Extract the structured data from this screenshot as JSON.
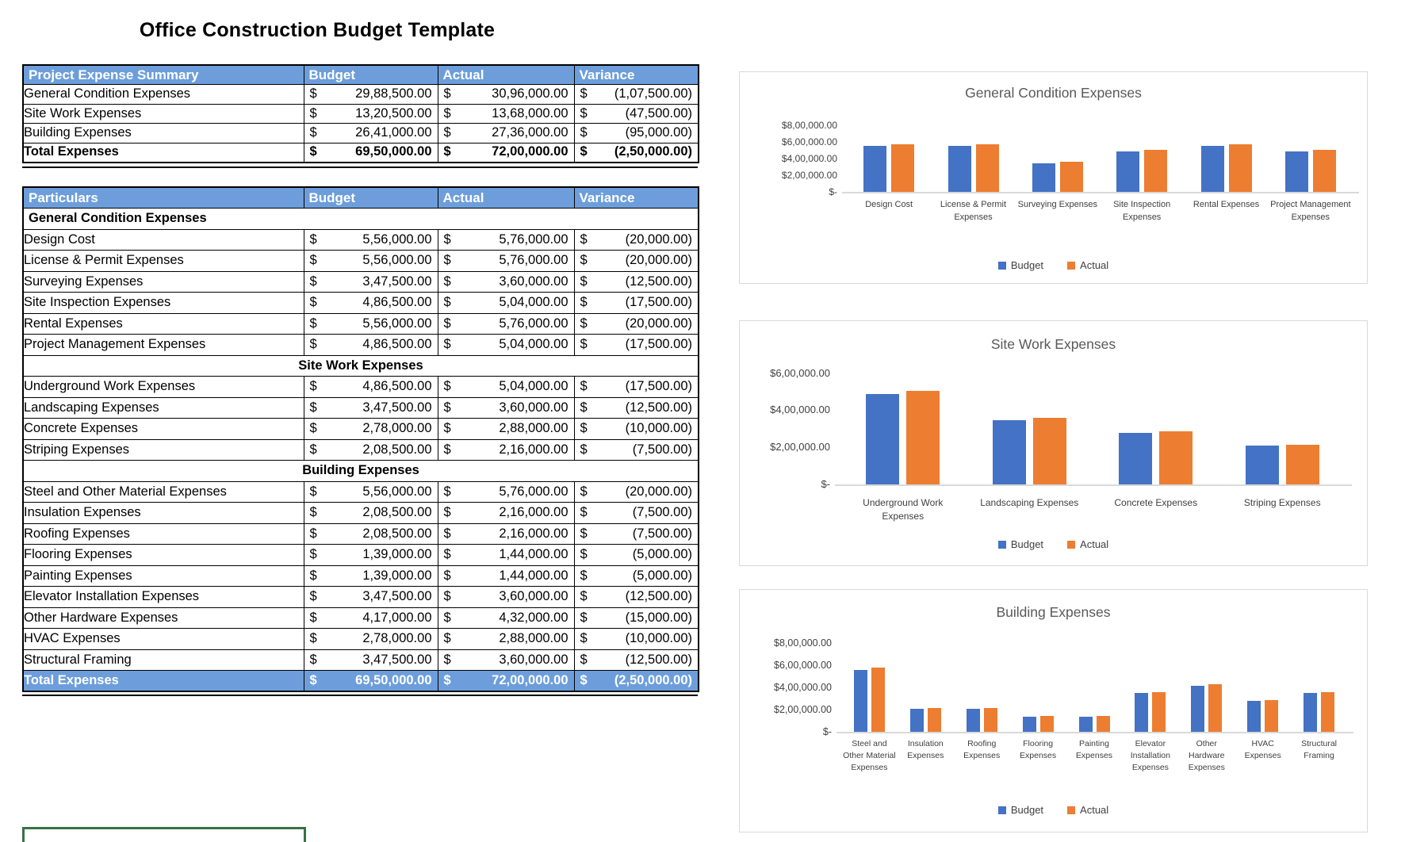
{
  "title": "Office Construction Budget Template",
  "currency_symbol": "$",
  "colors": {
    "budget_bar": "#4472C4",
    "actual_bar": "#ED7D31",
    "table_header_bg": "#6D9EDB",
    "table_header_text": "#FFFFFF",
    "chart_title_text": "#595959",
    "axis_text": "#404040",
    "chart_border": "#D9D9D9",
    "green_box_border": "#3A7047"
  },
  "summary_table": {
    "headers": [
      "Project Expense Summary",
      "Budget",
      "Actual",
      "Variance"
    ],
    "rows": [
      {
        "type": "data",
        "label": "General Condition Expenses",
        "budget": "29,88,500.00",
        "actual": "30,96,000.00",
        "variance": "(1,07,500.00)"
      },
      {
        "type": "data",
        "label": "Site Work Expenses",
        "budget": "13,20,500.00",
        "actual": "13,68,000.00",
        "variance": "(47,500.00)"
      },
      {
        "type": "data",
        "label": "Building Expenses",
        "budget": "26,41,000.00",
        "actual": "27,36,000.00",
        "variance": "(95,000.00)"
      },
      {
        "type": "total",
        "label": "Total Expenses",
        "budget": "69,50,000.00",
        "actual": "72,00,000.00",
        "variance": "(2,50,000.00)"
      }
    ]
  },
  "detail_table": {
    "headers": [
      "Particulars",
      "Budget",
      "Actual",
      "Variance"
    ],
    "rows": [
      {
        "type": "section",
        "label": "General Condition Expenses",
        "align": "left"
      },
      {
        "type": "data",
        "label": "Design Cost",
        "budget": "5,56,000.00",
        "actual": "5,76,000.00",
        "variance": "(20,000.00)"
      },
      {
        "type": "data",
        "label": "License & Permit Expenses",
        "budget": "5,56,000.00",
        "actual": "5,76,000.00",
        "variance": "(20,000.00)"
      },
      {
        "type": "data",
        "label": "Surveying Expenses",
        "budget": "3,47,500.00",
        "actual": "3,60,000.00",
        "variance": "(12,500.00)"
      },
      {
        "type": "data",
        "label": "Site Inspection Expenses",
        "budget": "4,86,500.00",
        "actual": "5,04,000.00",
        "variance": "(17,500.00)"
      },
      {
        "type": "data",
        "label": "Rental Expenses",
        "budget": "5,56,000.00",
        "actual": "5,76,000.00",
        "variance": "(20,000.00)"
      },
      {
        "type": "data",
        "label": "Project Management Expenses",
        "budget": "4,86,500.00",
        "actual": "5,04,000.00",
        "variance": "(17,500.00)"
      },
      {
        "type": "section",
        "label": "Site Work Expenses",
        "align": "center"
      },
      {
        "type": "data",
        "label": "Underground Work Expenses",
        "budget": "4,86,500.00",
        "actual": "5,04,000.00",
        "variance": "(17,500.00)"
      },
      {
        "type": "data",
        "label": "Landscaping Expenses",
        "budget": "3,47,500.00",
        "actual": "3,60,000.00",
        "variance": "(12,500.00)"
      },
      {
        "type": "data",
        "label": "Concrete Expenses",
        "budget": "2,78,000.00",
        "actual": "2,88,000.00",
        "variance": "(10,000.00)"
      },
      {
        "type": "data",
        "label": "Striping Expenses",
        "budget": "2,08,500.00",
        "actual": "2,16,000.00",
        "variance": "(7,500.00)"
      },
      {
        "type": "section",
        "label": "Building Expenses",
        "align": "center"
      },
      {
        "type": "data",
        "label": "Steel and Other Material Expenses",
        "budget": "5,56,000.00",
        "actual": "5,76,000.00",
        "variance": "(20,000.00)"
      },
      {
        "type": "data",
        "label": "Insulation Expenses",
        "budget": "2,08,500.00",
        "actual": "2,16,000.00",
        "variance": "(7,500.00)"
      },
      {
        "type": "data",
        "label": "Roofing Expenses",
        "budget": "2,08,500.00",
        "actual": "2,16,000.00",
        "variance": "(7,500.00)"
      },
      {
        "type": "data",
        "label": "Flooring Expenses",
        "budget": "1,39,000.00",
        "actual": "1,44,000.00",
        "variance": "(5,000.00)"
      },
      {
        "type": "data",
        "label": "Painting Expenses",
        "budget": "1,39,000.00",
        "actual": "1,44,000.00",
        "variance": "(5,000.00)"
      },
      {
        "type": "data",
        "label": "Elevator Installation Expenses",
        "budget": "3,47,500.00",
        "actual": "3,60,000.00",
        "variance": "(12,500.00)"
      },
      {
        "type": "data",
        "label": "Other Hardware Expenses",
        "budget": "4,17,000.00",
        "actual": "4,32,000.00",
        "variance": "(15,000.00)"
      },
      {
        "type": "data",
        "label": "HVAC Expenses",
        "budget": "2,78,000.00",
        "actual": "2,88,000.00",
        "variance": "(10,000.00)"
      },
      {
        "type": "data",
        "label": "Structural Framing",
        "budget": "3,47,500.00",
        "actual": "3,60,000.00",
        "variance": "(12,500.00)"
      },
      {
        "type": "total",
        "label": "Total Expenses",
        "budget": "69,50,000.00",
        "actual": "72,00,000.00",
        "variance": "(2,50,000.00)"
      }
    ]
  },
  "chart_data": [
    {
      "type": "bar",
      "title": "General Condition Expenses",
      "categories": [
        "Design Cost",
        "License & Permit Expenses",
        "Surveying Expenses",
        "Site Inspection Expenses",
        "Rental Expenses",
        "Project Management Expenses"
      ],
      "series": [
        {
          "name": "Budget",
          "color_key": "budget_bar",
          "values": [
            556000,
            556000,
            347500,
            486500,
            556000,
            486500
          ]
        },
        {
          "name": "Actual",
          "color_key": "actual_bar",
          "values": [
            576000,
            576000,
            360000,
            504000,
            576000,
            504000
          ]
        }
      ],
      "y_ticks": [
        "$8,00,000.00",
        "$6,00,000.00",
        "$4,00,000.00",
        "$2,00,000.00",
        "$-"
      ],
      "ylim": [
        0,
        800000
      ],
      "legend_position": "bottom",
      "grid": false
    },
    {
      "type": "bar",
      "title": "Site Work Expenses",
      "categories": [
        "Underground Work Expenses",
        "Landscaping Expenses",
        "Concrete Expenses",
        "Striping Expenses"
      ],
      "series": [
        {
          "name": "Budget",
          "color_key": "budget_bar",
          "values": [
            486500,
            347500,
            278000,
            208500
          ]
        },
        {
          "name": "Actual",
          "color_key": "actual_bar",
          "values": [
            504000,
            360000,
            288000,
            216000
          ]
        }
      ],
      "y_ticks": [
        "$6,00,000.00",
        "$4,00,000.00",
        "$2,00,000.00",
        "$-"
      ],
      "ylim": [
        0,
        600000
      ],
      "legend_position": "bottom",
      "grid": false
    },
    {
      "type": "bar",
      "title": "Building Expenses",
      "categories": [
        "Steel and Other Material Expenses",
        "Insulation Expenses",
        "Roofing Expenses",
        "Flooring Expenses",
        "Painting Expenses",
        "Elevator Installation Expenses",
        "Other Hardware Expenses",
        "HVAC Expenses",
        "Structural Framing"
      ],
      "series": [
        {
          "name": "Budget",
          "color_key": "budget_bar",
          "values": [
            556000,
            208500,
            208500,
            139000,
            139000,
            347500,
            417000,
            278000,
            347500
          ]
        },
        {
          "name": "Actual",
          "color_key": "actual_bar",
          "values": [
            576000,
            216000,
            216000,
            144000,
            144000,
            360000,
            432000,
            288000,
            360000
          ]
        }
      ],
      "y_ticks": [
        "$8,00,000.00",
        "$6,00,000.00",
        "$4,00,000.00",
        "$2,00,000.00",
        "$-"
      ],
      "ylim": [
        0,
        800000
      ],
      "legend_position": "bottom",
      "grid": false
    }
  ]
}
